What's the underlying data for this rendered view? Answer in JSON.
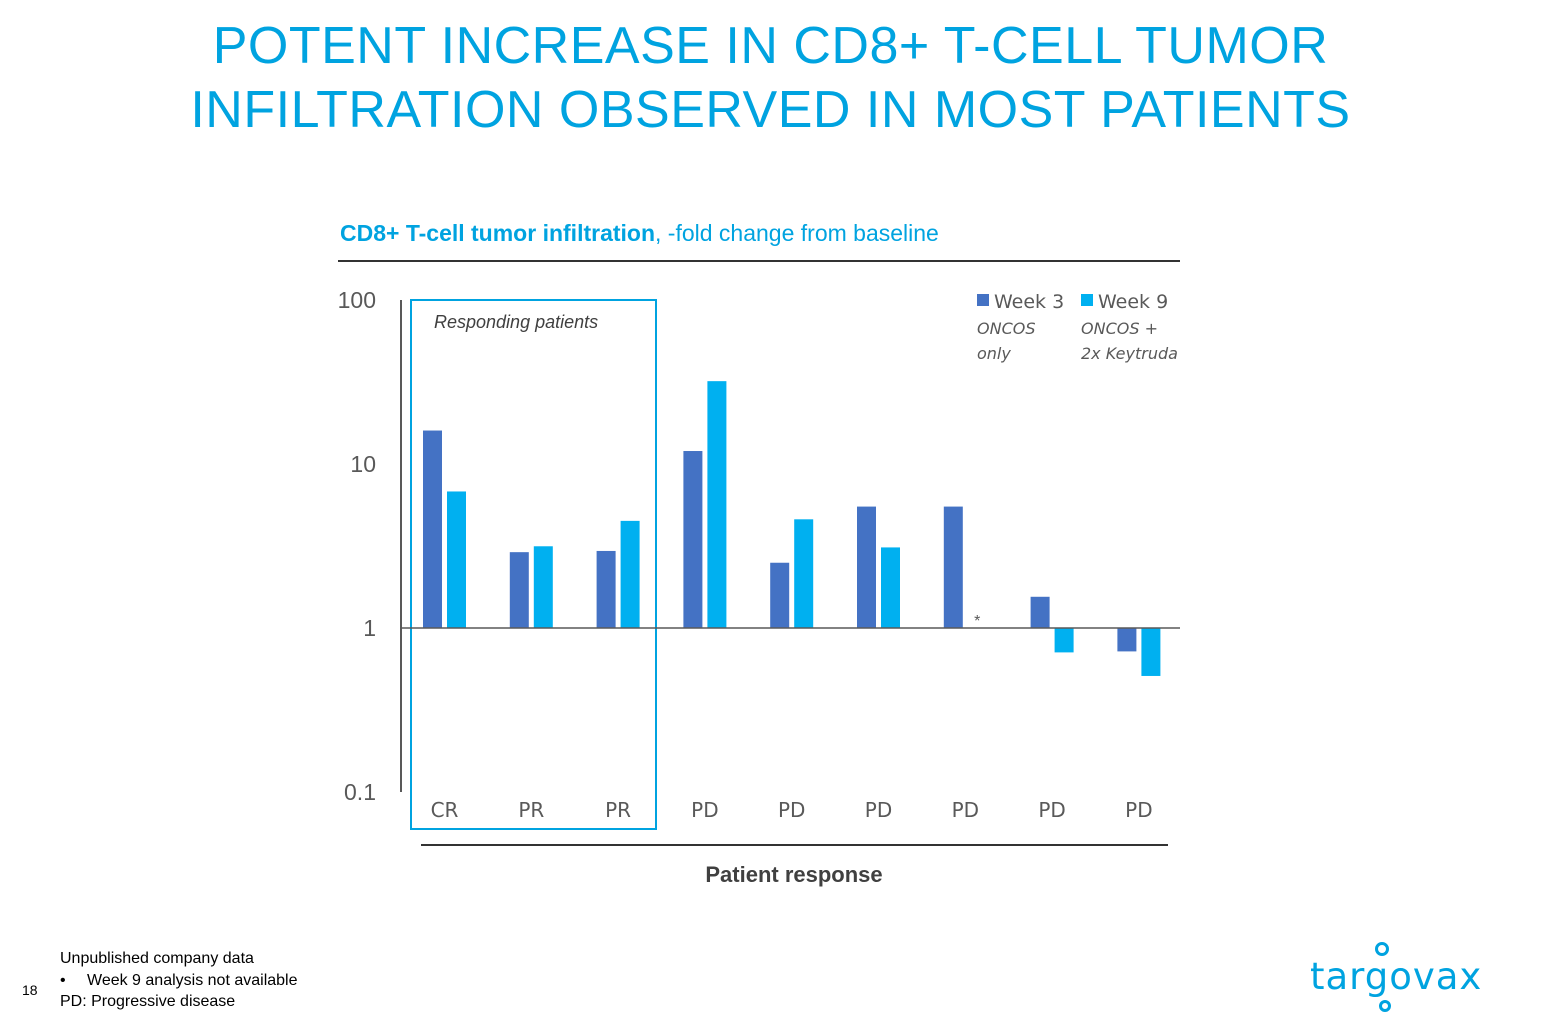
{
  "title": {
    "line1": "POTENT INCREASE IN CD8+ T-CELL TUMOR",
    "line2": "INFILTRATION OBSERVED IN MOST PATIENTS"
  },
  "colors": {
    "accent": "#00a3e0",
    "week3": "#4472c4",
    "week9": "#00b0f0",
    "axis": "#595959"
  },
  "chart_data": {
    "type": "bar",
    "title_bold": "CD8+ T-cell tumor infiltration",
    "title_rest": ", -fold change from baseline",
    "xlabel": "Patient response",
    "ylabel": "",
    "yscale": "log",
    "ylim": [
      0.1,
      100
    ],
    "yticks": [
      "100",
      "10",
      "1",
      "0.1"
    ],
    "ytick_values": [
      100,
      10,
      1,
      0.1
    ],
    "baseline": 1,
    "categories": [
      "CR",
      "PR",
      "PR",
      "PD",
      "PD",
      "PD",
      "PD",
      "PD",
      "PD"
    ],
    "series": [
      {
        "name": "Week 3",
        "sublabel_1": "ONCOS",
        "sublabel_2": "only",
        "color": "#4472c4",
        "values": [
          16,
          2.9,
          2.95,
          12,
          2.5,
          5.5,
          5.5,
          1.55,
          0.72
        ]
      },
      {
        "name": "Week 9",
        "sublabel_1": "ONCOS +",
        "sublabel_2": "2x Keytruda",
        "color": "#00b0f0",
        "values": [
          6.8,
          3.15,
          4.5,
          32,
          4.6,
          3.1,
          null,
          0.71,
          0.51
        ]
      }
    ],
    "annotations": {
      "responding_box": "Responding patients",
      "missing_marker": "*"
    },
    "legend_position": "top-right",
    "grid": false
  },
  "footnotes": {
    "line1": "Unpublished company data",
    "bullet": "•",
    "line2": "Week 9 analysis not available",
    "line3": "PD: Progressive disease"
  },
  "page_number": "18",
  "logo": {
    "text": "targovax",
    "icon": "targovax-logo-dots-icon"
  }
}
